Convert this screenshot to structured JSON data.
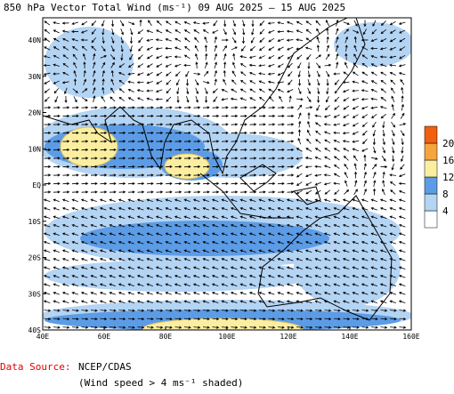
{
  "title": "850 hPa Vector Total Wind (ms⁻¹) 09 AUG 2025 — 15 AUG 2025",
  "lon_labels": [
    "40E",
    "60E",
    "80E",
    "100E",
    "120E",
    "140E",
    "160E"
  ],
  "lat_labels": [
    "40N",
    "30N",
    "20N",
    "10N",
    "EQ",
    "10S",
    "20S",
    "30S",
    "40S"
  ],
  "colorbar": {
    "ticks": [
      4,
      8,
      12,
      16,
      20
    ],
    "colors": [
      "#ffffff",
      "#b4d4f4",
      "#5c9ce6",
      "#fbeea0",
      "#f5a53c",
      "#f06010"
    ]
  },
  "footer": {
    "source_label": "Data Source:",
    "source": "NCEP/CDAS",
    "note": "(Wind speed > 4 ms⁻¹ shaded)"
  }
}
